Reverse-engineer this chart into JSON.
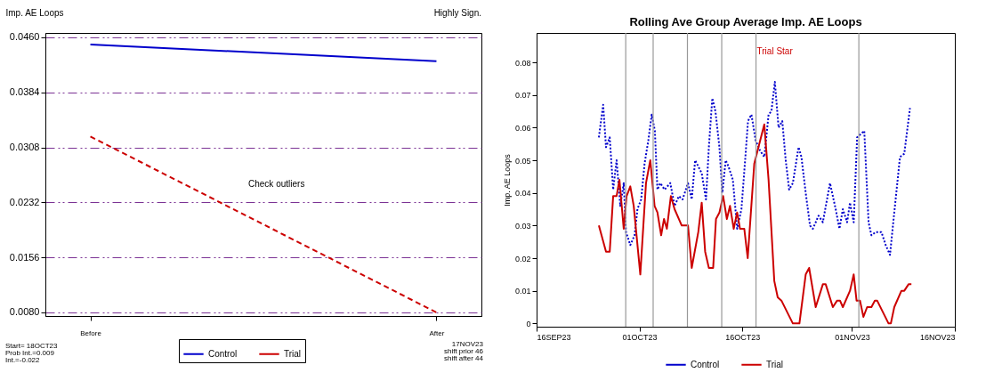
{
  "chart_data": [
    {
      "type": "line",
      "ylabel": "Imp. AE Loops",
      "categories": [
        "Before",
        "After"
      ],
      "ylim": [
        0.0075,
        0.0466
      ],
      "yticks": [
        {
          "value": 0.008,
          "label": "0.0080"
        },
        0.0156,
        0.0232,
        0.0308,
        0.0384,
        {
          "value": 0.046,
          "label": "0.0460"
        }
      ],
      "grid": "y",
      "legend": "bottom",
      "series": [
        {
          "name": "Control",
          "color": "#0000cc",
          "line_style": "solid",
          "values": [
            0.045,
            0.0427
          ]
        },
        {
          "name": "Trial",
          "color": "#cc0000",
          "line_style": "dashed",
          "values": [
            0.0323,
            0.008
          ]
        }
      ],
      "annotations": [
        "Highly Sign.",
        "Check outliers",
        "Start= 18OCT23",
        "Prob Int.=0.009",
        "Int.=-0.022",
        "17NOV23",
        "shift prior 46",
        "shift after 44"
      ]
    },
    {
      "type": "line",
      "title": "Rolling Ave Group Average Imp. AE Loops",
      "ylabel": "Imp. AE Loops",
      "xlim": [
        "2023-09-16",
        "2023-11-16"
      ],
      "xticks": [
        {
          "value": "2023-09-16",
          "label": "16SEP23"
        },
        {
          "value": "2023-10-01",
          "label": "01OCT23"
        },
        {
          "value": "2023-10-16",
          "label": "16OCT23"
        },
        {
          "value": "2023-11-01",
          "label": "01NOV23"
        },
        {
          "value": "2023-11-16",
          "label": "16NOV23"
        }
      ],
      "ylim": [
        -0.001,
        0.089
      ],
      "yticks": [
        0,
        0.01,
        0.02,
        0.03,
        0.04,
        0.05,
        0.06,
        0.07,
        0.08
      ],
      "grid": false,
      "legend": "bottom",
      "ref_lines": [
        {
          "axis": "x",
          "value": "2023-09-29",
          "color": "#999999"
        },
        {
          "axis": "x",
          "value": "2023-10-03",
          "color": "#999999"
        },
        {
          "axis": "x",
          "value": "2023-10-08",
          "color": "#999999"
        },
        {
          "axis": "x",
          "value": "2023-10-13",
          "color": "#999999"
        },
        {
          "axis": "x",
          "value": "2023-10-18",
          "label": "Trial Star",
          "color": "#999999"
        },
        {
          "axis": "x",
          "value": "2023-11-02",
          "color": "#999999"
        }
      ],
      "series": [
        {
          "name": "Control",
          "color": "#0000cc",
          "line_style": "dotted",
          "x": [
            "2023-09-25T02:00",
            "2023-09-25T17:00",
            "2023-09-26T03:00",
            "2023-09-26T16:00",
            "2023-09-27T04:00",
            "2023-09-27T16:00",
            "2023-09-28T05:00",
            "2023-09-28T17:00",
            "2023-09-29T01:00",
            "2023-09-29T16:00",
            "2023-09-30T07:00",
            "2023-09-30T17:00",
            "2023-10-01T06:00",
            "2023-10-01T18:00",
            "2023-10-02T07:00",
            "2023-10-02T19:00",
            "2023-10-03T06:00",
            "2023-10-03T15:00",
            "2023-10-04T01:00",
            "2023-10-04T16:00",
            "2023-10-05T12:00",
            "2023-10-06T03:00",
            "2023-10-06T18:00",
            "2023-10-07T07:00",
            "2023-10-08T02:00",
            "2023-10-08T15:00",
            "2023-10-09T03:00",
            "2023-10-10T02:00",
            "2023-10-10T17:00",
            "2023-10-11T03:00",
            "2023-10-11T15:00",
            "2023-10-12T02:00",
            "2023-10-12T16:00",
            "2023-10-13T02:00",
            "2023-10-13T14:00",
            "2023-10-14T00:00",
            "2023-10-14T15:00",
            "2023-10-15T06:00",
            "2023-10-15T21:00",
            "2023-10-16T10:00",
            "2023-10-16T20:00",
            "2023-10-17T08:00",
            "2023-10-17T23:00",
            "2023-10-18T14:00",
            "2023-10-19T05:00",
            "2023-10-19T20:00",
            "2023-10-20T06:00",
            "2023-10-20T18:00",
            "2023-10-21T07:00",
            "2023-10-21T20:00",
            "2023-10-22T08:00",
            "2023-10-22T20:00",
            "2023-10-23T09:00",
            "2023-10-24T05:00",
            "2023-10-24T15:00",
            "2023-10-25T06:00",
            "2023-10-25T21:00",
            "2023-10-26T07:00",
            "2023-10-27T03:00",
            "2023-10-27T18:00",
            "2023-10-28T19:00",
            "2023-10-29T15:00",
            "2023-10-30T04:00",
            "2023-10-30T16:00",
            "2023-10-31T07:00",
            "2023-10-31T17:00",
            "2023-11-01T06:00",
            "2023-11-01T18:00",
            "2023-11-02T19:00",
            "2023-11-03T10:00",
            "2023-11-03T20:00",
            "2023-11-04T11:00",
            "2023-11-05T07:00",
            "2023-11-05T22:00",
            "2023-11-06T13:00",
            "2023-11-07T04:00",
            "2023-11-08T00:00",
            "2023-11-08T15:00",
            "2023-11-09T11:00"
          ],
          "values": [
            0.057,
            0.067,
            0.054,
            0.057,
            0.041,
            0.05,
            0.036,
            0.043,
            0.028,
            0.024,
            0.027,
            0.035,
            0.038,
            0.049,
            0.056,
            0.064,
            0.059,
            0.041,
            0.043,
            0.041,
            0.043,
            0.036,
            0.039,
            0.038,
            0.043,
            0.038,
            0.05,
            0.046,
            0.038,
            0.054,
            0.069,
            0.065,
            0.054,
            0.04,
            0.05,
            0.048,
            0.044,
            0.029,
            0.035,
            0.05,
            0.062,
            0.064,
            0.056,
            0.053,
            0.051,
            0.064,
            0.065,
            0.074,
            0.06,
            0.062,
            0.05,
            0.041,
            0.043,
            0.054,
            0.051,
            0.04,
            0.03,
            0.029,
            0.033,
            0.031,
            0.043,
            0.035,
            0.029,
            0.035,
            0.031,
            0.037,
            0.031,
            0.057,
            0.059,
            0.031,
            0.027,
            0.028,
            0.028,
            0.024,
            0.021,
            0.034,
            0.051,
            0.052,
            0.066
          ]
        },
        {
          "name": "Trial",
          "color": "#cc0000",
          "line_style": "solid",
          "x": [
            "2023-09-25T02:00",
            "2023-09-26T03:00",
            "2023-09-26T16:00",
            "2023-09-27T04:00",
            "2023-09-27T16:00",
            "2023-09-28T02:00",
            "2023-09-28T17:00",
            "2023-09-29T03:00",
            "2023-09-29T16:00",
            "2023-09-30T04:00",
            "2023-10-01T03:00",
            "2023-10-01T23:00",
            "2023-10-02T14:00",
            "2023-10-03T05:00",
            "2023-10-03T15:00",
            "2023-10-04T04:00",
            "2023-10-04T14:00",
            "2023-10-05T00:00",
            "2023-10-05T14:00",
            "2023-10-06T03:00",
            "2023-10-07T04:00",
            "2023-10-08T02:00",
            "2023-10-08T15:00",
            "2023-10-09T14:00",
            "2023-10-10T02:00",
            "2023-10-10T14:00",
            "2023-10-11T03:00",
            "2023-10-11T18:00",
            "2023-10-12T04:00",
            "2023-10-12T16:00",
            "2023-10-13T05:00",
            "2023-10-13T18:00",
            "2023-10-14T05:00",
            "2023-10-14T18:00",
            "2023-10-15T06:00",
            "2023-10-15T16:00",
            "2023-10-16T07:00",
            "2023-10-16T19:00",
            "2023-10-17T18:00",
            "2023-10-19T05:00",
            "2023-10-19T20:00",
            "2023-10-20T16:00",
            "2023-10-21T04:00",
            "2023-10-21T17:00",
            "2023-10-23T09:00",
            "2023-10-24T08:00",
            "2023-10-25T06:00",
            "2023-10-25T18:00",
            "2023-10-26T17:00",
            "2023-10-27T18:00",
            "2023-10-28T04:00",
            "2023-10-29T05:00",
            "2023-10-29T20:00",
            "2023-10-30T06:00",
            "2023-10-30T16:00",
            "2023-10-31T17:00",
            "2023-11-01T06:00",
            "2023-11-01T16:00",
            "2023-11-02T04:00",
            "2023-11-02T16:00",
            "2023-11-03T05:00",
            "2023-11-03T20:00",
            "2023-11-04T08:00",
            "2023-11-04T16:00",
            "2023-11-06T08:00",
            "2023-11-06T16:00",
            "2023-11-07T04:00",
            "2023-11-08T05:00",
            "2023-11-08T15:00",
            "2023-11-09T06:00",
            "2023-11-09T16:00"
          ],
          "values": [
            0.03,
            0.022,
            0.022,
            0.039,
            0.039,
            0.044,
            0.029,
            0.039,
            0.042,
            0.036,
            0.015,
            0.043,
            0.05,
            0.036,
            0.034,
            0.027,
            0.032,
            0.029,
            0.039,
            0.035,
            0.03,
            0.03,
            0.017,
            0.028,
            0.037,
            0.022,
            0.017,
            0.017,
            0.032,
            0.034,
            0.039,
            0.032,
            0.036,
            0.029,
            0.034,
            0.029,
            0.029,
            0.02,
            0.049,
            0.061,
            0.044,
            0.013,
            0.008,
            0.007,
            0,
            0,
            0.015,
            0.017,
            0.005,
            0.012,
            0.012,
            0.005,
            0.007,
            0.007,
            0.005,
            0.01,
            0.015,
            0.007,
            0.007,
            0.002,
            0.005,
            0.005,
            0.007,
            0.007,
            0,
            0,
            0.005,
            0.01,
            0.01,
            0.012,
            0.012
          ]
        }
      ]
    }
  ]
}
